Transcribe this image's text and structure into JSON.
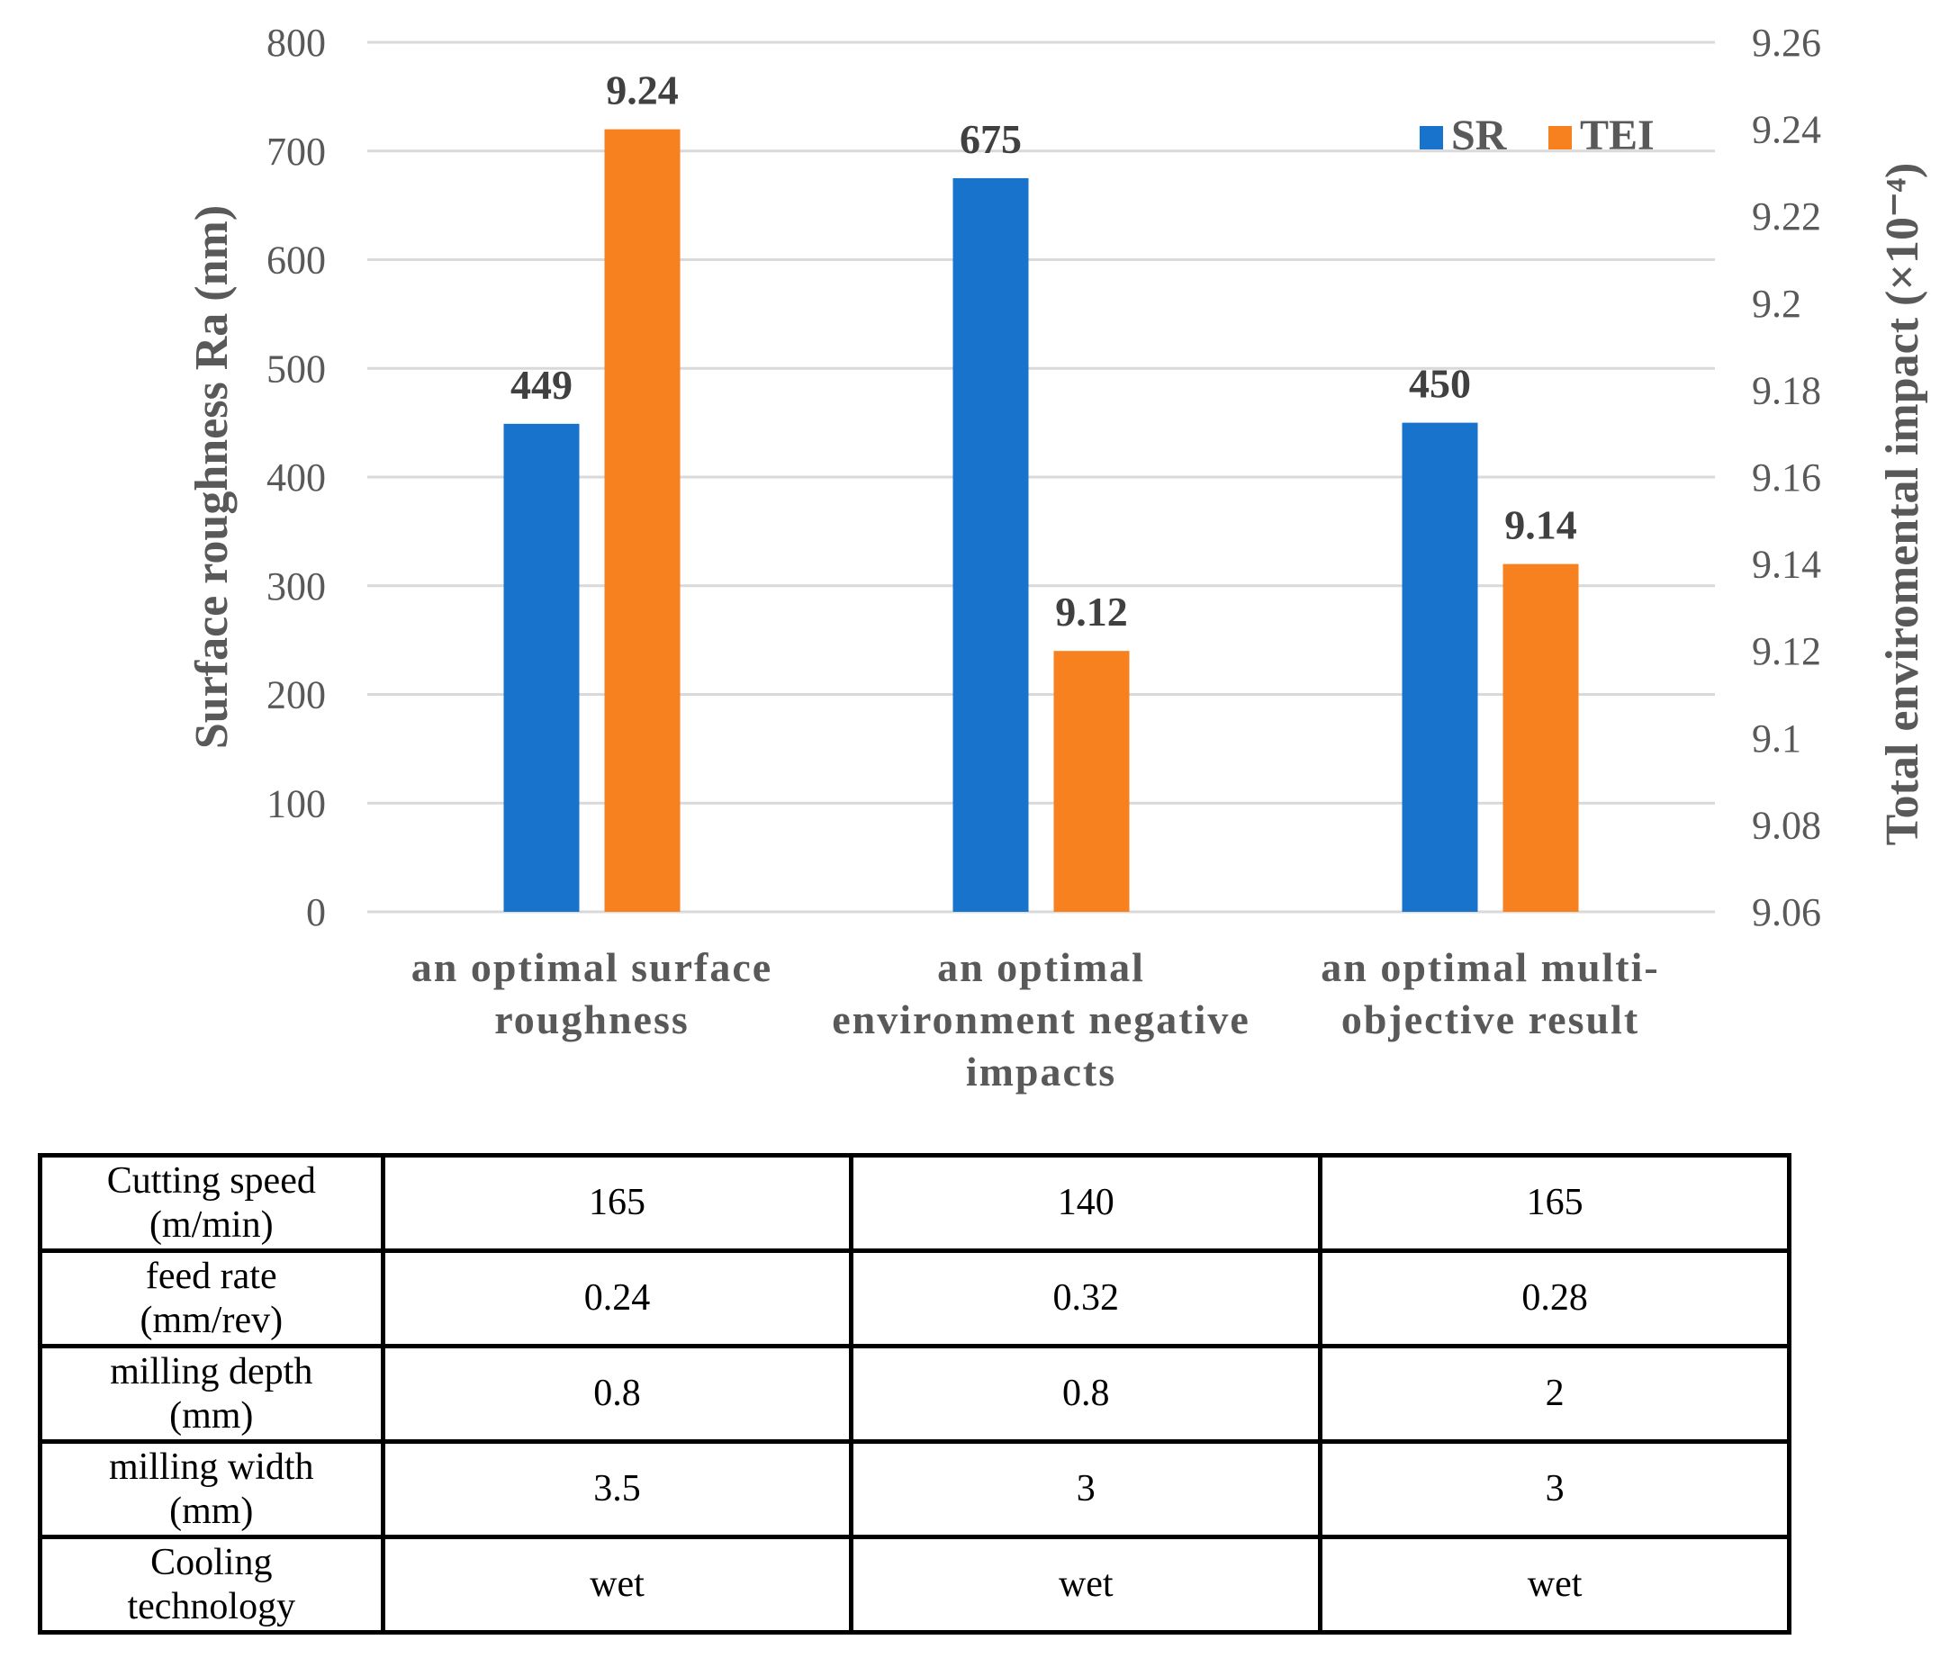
{
  "chart_data": {
    "type": "bar",
    "categories": [
      [
        "an optimal surface",
        "roughness"
      ],
      [
        "an optimal",
        "environment negative",
        "impacts"
      ],
      [
        "an optimal multi-",
        "objective result"
      ]
    ],
    "series": [
      {
        "name": "SR",
        "axis": "left",
        "color": "#1873CC",
        "values": [
          449,
          675,
          450
        ],
        "labels": [
          "449",
          "675",
          "450"
        ]
      },
      {
        "name": "TEI",
        "axis": "right",
        "color": "#F7811F",
        "values": [
          9.24,
          9.12,
          9.14
        ],
        "labels": [
          "9.24",
          "9.12",
          "9.14"
        ]
      }
    ],
    "ylabel": "Surface roughness Ra (nm)",
    "y2label": "Total enviromental impact (×10⁻⁴)",
    "ylim": [
      0,
      800
    ],
    "y2lim": [
      9.06,
      9.26
    ],
    "yticks": [
      "0",
      "100",
      "200",
      "300",
      "400",
      "500",
      "600",
      "700",
      "800"
    ],
    "y2ticks": [
      "9.06",
      "9.08",
      "9.1",
      "9.12",
      "9.14",
      "9.16",
      "9.18",
      "9.2",
      "9.22",
      "9.24",
      "9.26"
    ],
    "legend_position": "top-right",
    "grid": true
  },
  "table": {
    "rows": [
      {
        "header": [
          "Cutting speed",
          "(m/min)"
        ],
        "values": [
          "165",
          "140",
          "165"
        ]
      },
      {
        "header": [
          "feed rate",
          "(mm/rev)"
        ],
        "values": [
          "0.24",
          "0.32",
          "0.28"
        ]
      },
      {
        "header": [
          "milling depth",
          "(mm)"
        ],
        "values": [
          "0.8",
          "0.8",
          "2"
        ]
      },
      {
        "header": [
          "milling width",
          "(mm)"
        ],
        "values": [
          "3.5",
          "3",
          "3"
        ]
      },
      {
        "header": [
          "Cooling",
          "technology"
        ],
        "values": [
          "wet",
          "wet",
          "wet"
        ]
      }
    ]
  }
}
